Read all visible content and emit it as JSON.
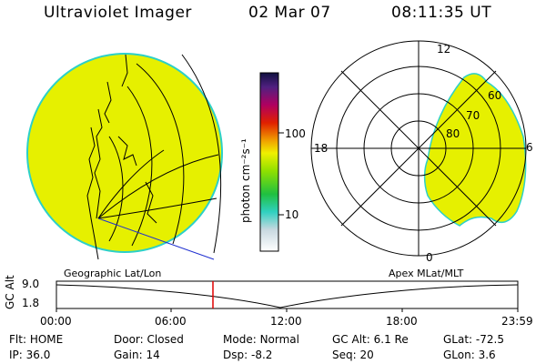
{
  "header": {
    "title": "Ultraviolet Imager",
    "date": "02 Mar 07",
    "time": "08:11:35 UT"
  },
  "colorbar": {
    "unit_label": "photon cm⁻²s⁻¹",
    "ticks": [
      "100",
      "10"
    ]
  },
  "polar": {
    "mlt_labels": {
      "top": "12",
      "left": "18",
      "right": "6",
      "bottom": "0"
    },
    "lat_labels": [
      "60",
      "70",
      "80"
    ]
  },
  "footer_labels": {
    "left": "Geographic Lat/Lon",
    "right": "Apex MLat/MLT"
  },
  "altitude_plot": {
    "ylabel": "GC Alt",
    "ymax": "9.0",
    "ymin": "1.8",
    "time_ticks": [
      "00:00",
      "06:00",
      "12:00",
      "18:00",
      "23:59"
    ]
  },
  "info": {
    "row1": [
      {
        "label": "Flt:",
        "value": "HOME"
      },
      {
        "label": "Door:",
        "value": "Closed"
      },
      {
        "label": "Mode:",
        "value": "Normal"
      },
      {
        "label": "GC Alt:",
        "value": "6.1 Re"
      },
      {
        "label": "GLat:",
        "value": "-72.5"
      }
    ],
    "row2": [
      {
        "label": "IP:",
        "value": "36.0"
      },
      {
        "label": "Gain:",
        "value": "14"
      },
      {
        "label": "Dsp:",
        "value": "-8.2"
      },
      {
        "label": "Seq:",
        "value": "20"
      },
      {
        "label": "GLon:",
        "value": "3.6"
      }
    ]
  },
  "colors": {
    "emission": "#e6f000",
    "limb": "#2cd0c8",
    "marker": "#e00000",
    "trajectory": "#2030d0"
  }
}
